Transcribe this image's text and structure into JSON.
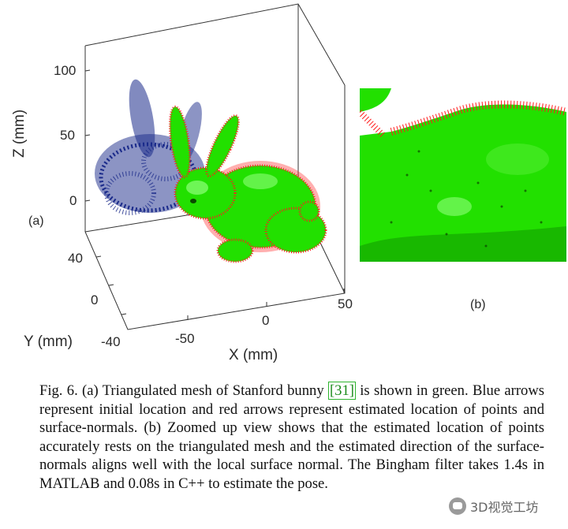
{
  "figure": {
    "main_plot": {
      "z_axis": {
        "label": "Z (mm)",
        "ticks": [
          "100",
          "50",
          "0"
        ]
      },
      "y_axis": {
        "label": "Y (mm)",
        "ticks": [
          "40",
          "0",
          "-40"
        ]
      },
      "x_axis": {
        "label": "X (mm)",
        "ticks": [
          "-50",
          "0",
          "50"
        ]
      },
      "panel_label": "(a)",
      "colors": {
        "mesh": "#22e000",
        "initial_arrows": "#1a2a8a",
        "estimated_arrows": "#ff1a1a"
      }
    },
    "zoom_plot": {
      "panel_label": "(b)"
    }
  },
  "caption": {
    "prefix": "Fig. 6.   (a) Triangulated mesh of Stanford bunny ",
    "reference": "[31]",
    "text": " is shown in green. Blue arrows represent initial location and red arrows represent estimated location of points and surface-normals. (b) Zoomed up view shows that the estimated location of points accurately rests on the triangulated mesh and the estimated direction of the surface-normals aligns well with the local surface normal. The Bingham filter takes 1.4s in MATLAB and 0.08s in C++ to estimate the pose."
  },
  "watermark": {
    "text": "3D视觉工坊"
  }
}
